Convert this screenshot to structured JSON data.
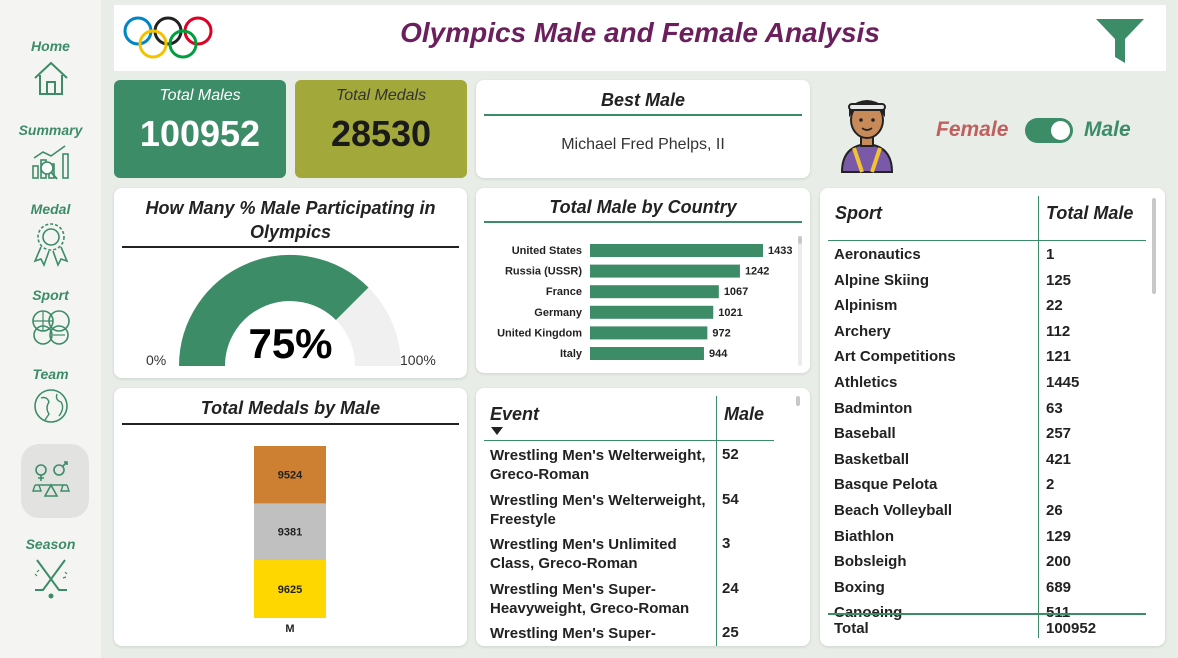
{
  "header": {
    "title": "Olympics Male and Female Analysis"
  },
  "nav": [
    {
      "label": "Home",
      "icon": "home-icon"
    },
    {
      "label": "Summary",
      "icon": "chart-icon"
    },
    {
      "label": "Medal",
      "icon": "medal-icon"
    },
    {
      "label": "Sport",
      "icon": "sport-balls-icon"
    },
    {
      "label": "Team",
      "icon": "globe-icon"
    },
    {
      "label": "",
      "icon": "gender-balance-icon"
    },
    {
      "label": "Season",
      "icon": "hockey-sticks-icon"
    }
  ],
  "kpis": {
    "total_males": {
      "label": "Total Males",
      "value": "100952"
    },
    "total_medals": {
      "label": "Total Medals",
      "value": "28530"
    }
  },
  "best_male": {
    "title": "Best Male",
    "name": "Michael Fred Phelps, II"
  },
  "toggle": {
    "left": "Female",
    "right": "Male",
    "state": "Male"
  },
  "gauge": {
    "title": "How Many % Male Participating in Olympics",
    "value_label": "75%",
    "value": 75,
    "min_label": "0%",
    "max_label": "100%",
    "fill_color": "#3d8c68",
    "track_color": "#f1f0f0"
  },
  "country_chart": {
    "title": "Total Male by Country"
  },
  "medal_chart": {
    "title": "Total Medals by Male"
  },
  "chart_data": [
    {
      "type": "bar",
      "orientation": "horizontal",
      "title": "Total Male by Country",
      "categories": [
        "United States",
        "Russia (USSR)",
        "France",
        "Germany",
        "United Kingdom",
        "Italy"
      ],
      "values": [
        1433,
        1242,
        1067,
        1021,
        972,
        944
      ],
      "color": "#3d8c68",
      "xlim": [
        0,
        1433
      ]
    },
    {
      "type": "bar",
      "stacked": true,
      "title": "Total Medals by Male",
      "categories": [
        "M"
      ],
      "series": [
        {
          "values": [
            9625
          ],
          "color": "#ffd700"
        },
        {
          "values": [
            9381
          ],
          "color": "#c0c0c0"
        },
        {
          "values": [
            9524
          ],
          "color": "#cd7f32"
        }
      ]
    }
  ],
  "event_table": {
    "headers": [
      "Event",
      "Male"
    ],
    "rows": [
      {
        "event": "Wrestling Men's Welterweight, Greco-Roman",
        "male": "52"
      },
      {
        "event": "Wrestling Men's Welterweight, Freestyle",
        "male": "54"
      },
      {
        "event": "Wrestling Men's Unlimited Class, Greco-Roman",
        "male": "3"
      },
      {
        "event": "Wrestling Men's Super-Heavyweight, Greco-Roman",
        "male": "24"
      },
      {
        "event": "Wrestling Men's Super-",
        "male": "25"
      }
    ]
  },
  "sport_table": {
    "headers": [
      "Sport",
      "Total Male"
    ],
    "rows": [
      {
        "sport": "Aeronautics",
        "total": "1"
      },
      {
        "sport": "Alpine Skiing",
        "total": "125"
      },
      {
        "sport": "Alpinism",
        "total": "22"
      },
      {
        "sport": "Archery",
        "total": "112"
      },
      {
        "sport": "Art Competitions",
        "total": "121"
      },
      {
        "sport": "Athletics",
        "total": "1445"
      },
      {
        "sport": "Badminton",
        "total": "63"
      },
      {
        "sport": "Baseball",
        "total": "257"
      },
      {
        "sport": "Basketball",
        "total": "421"
      },
      {
        "sport": "Basque Pelota",
        "total": "2"
      },
      {
        "sport": "Beach Volleyball",
        "total": "26"
      },
      {
        "sport": "Biathlon",
        "total": "129"
      },
      {
        "sport": "Bobsleigh",
        "total": "200"
      },
      {
        "sport": "Boxing",
        "total": "689"
      },
      {
        "sport": "Canoeing",
        "total": "511"
      }
    ],
    "total_label": "Total",
    "total_value": "100952"
  }
}
